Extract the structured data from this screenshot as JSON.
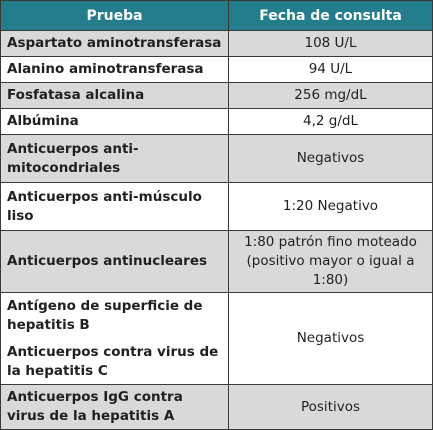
{
  "table": {
    "header": [
      "Prueba",
      "Fecha de consulta"
    ],
    "rows": [
      [
        "Aspartato aminotransferasa",
        "108 U/L"
      ],
      [
        "Alanino aminotransferasa",
        "94 U/L"
      ],
      [
        "Fosfatasa alcalina",
        "256 mg/dL"
      ],
      [
        "Albúmina",
        "4,2 g/dL"
      ],
      [
        "Anticuerpos anti-mitocondriales",
        "Negativos"
      ],
      [
        "Anticuerpos anti-músculo liso",
        "1:20 Negativo"
      ],
      [
        "Anticuerpos antinucleares",
        "1:80 patrón fino moteado (positivo mayor o igual a 1:80)"
      ],
      [
        [
          "Antígeno de superficie de hepatitis B",
          "Anticuerpos contra virus de la hepatitis C"
        ],
        "Negativos"
      ],
      [
        "Anticuerpos IgG contra virus de la hepatitis A",
        "Positivos"
      ]
    ]
  }
}
